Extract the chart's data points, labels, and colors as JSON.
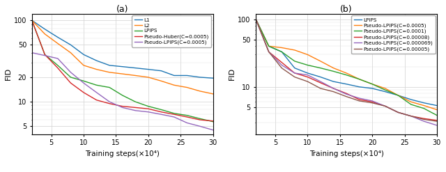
{
  "plot_a": {
    "title": "(a)",
    "xlabel": "Training steps(×10⁴)",
    "ylabel": "FID",
    "xsteps": [
      2,
      4,
      6,
      8,
      10,
      12,
      14,
      16,
      18,
      20,
      22,
      24,
      26,
      28,
      30
    ],
    "series": [
      {
        "label": "L1",
        "color": "#1f77b4",
        "data": [
          100,
          78,
          62,
          50,
          38,
          32,
          28,
          27,
          26,
          25,
          24,
          21,
          21,
          20,
          19.5
        ]
      },
      {
        "label": "L2",
        "color": "#ff7f0e",
        "data": [
          100,
          68,
          52,
          40,
          28,
          25,
          23,
          22,
          21,
          20,
          18,
          16,
          15,
          13.5,
          12.5
        ]
      },
      {
        "label": "LPIPS",
        "color": "#2ca02c",
        "data": [
          100,
          38,
          28,
          20,
          18,
          16,
          15,
          12,
          10,
          8.8,
          8,
          7.2,
          6.8,
          6.2,
          5.7
        ]
      },
      {
        "label": "Pseudo-Huber(C=0.0005)",
        "color": "#d62728",
        "data": [
          100,
          38,
          26,
          17,
          13,
          10.5,
          9.5,
          8.8,
          8.5,
          8.2,
          7.5,
          7,
          6.5,
          6,
          5.8
        ]
      },
      {
        "label": "Pseudo-LPIPS(C=0.0005)",
        "color": "#9467bd",
        "data": [
          40,
          37,
          34,
          23,
          17,
          13,
          10,
          8.5,
          7.8,
          7.5,
          7,
          6.5,
          5.5,
          5.0,
          4.5
        ]
      }
    ],
    "ylim_log": [
      4,
      120
    ],
    "yticks": [
      5,
      10,
      20,
      50,
      100
    ],
    "xticks": [
      5,
      10,
      15,
      20,
      25,
      30
    ]
  },
  "plot_b": {
    "title": "(b)",
    "xlabel": "Training steps(×10⁴)",
    "ylabel": "FID",
    "xsteps": [
      2,
      4,
      6,
      8,
      10,
      12,
      14,
      16,
      18,
      20,
      22,
      24,
      26,
      28,
      30
    ],
    "series": [
      {
        "label": "LPIPS",
        "color": "#1f77b4",
        "data": [
          100,
          40,
          33,
          19,
          16,
          14,
          12,
          11,
          10,
          9.5,
          8.5,
          7.5,
          6.5,
          5.8,
          5.3
        ]
      },
      {
        "label": "Pseudo-LPIPS(C=0.0005)",
        "color": "#ff7f0e",
        "data": [
          100,
          40,
          38,
          35,
          30,
          24,
          19,
          16,
          13,
          11,
          9.5,
          7.5,
          6.0,
          5.3,
          4.6
        ]
      },
      {
        "label": "Pseudo-LPIPS(C=0.0001)",
        "color": "#2ca02c",
        "data": [
          100,
          40,
          33,
          24,
          21,
          19,
          17,
          15,
          13,
          11,
          9,
          7.5,
          5.5,
          4.8,
          3.8
        ]
      },
      {
        "label": "Pseudo-LPIPS(C=0.00008)",
        "color": "#d62728",
        "data": [
          100,
          33,
          23,
          16,
          14,
          11.5,
          9.5,
          8,
          6.5,
          6,
          5.2,
          4.2,
          3.7,
          3.4,
          3.2
        ]
      },
      {
        "label": "Pseudo-LPIPS(C=0.000069)",
        "color": "#9467bd",
        "data": [
          100,
          33,
          21,
          16,
          15,
          12,
          9.5,
          7.8,
          6.8,
          6.2,
          5.2,
          4.2,
          3.7,
          3.1,
          2.7
        ]
      },
      {
        "label": "Pseudo-LPIPS(C=0.00005)",
        "color": "#8c564b",
        "data": [
          100,
          33,
          19,
          14,
          12,
          9.5,
          8.5,
          7.2,
          6.2,
          5.8,
          5.2,
          4.2,
          3.7,
          3.3,
          3.1
        ]
      }
    ],
    "ylim_log": [
      2,
      120
    ],
    "yticks": [
      5,
      10,
      50,
      100
    ],
    "xticks": [
      5,
      10,
      15,
      20,
      25,
      30
    ]
  }
}
